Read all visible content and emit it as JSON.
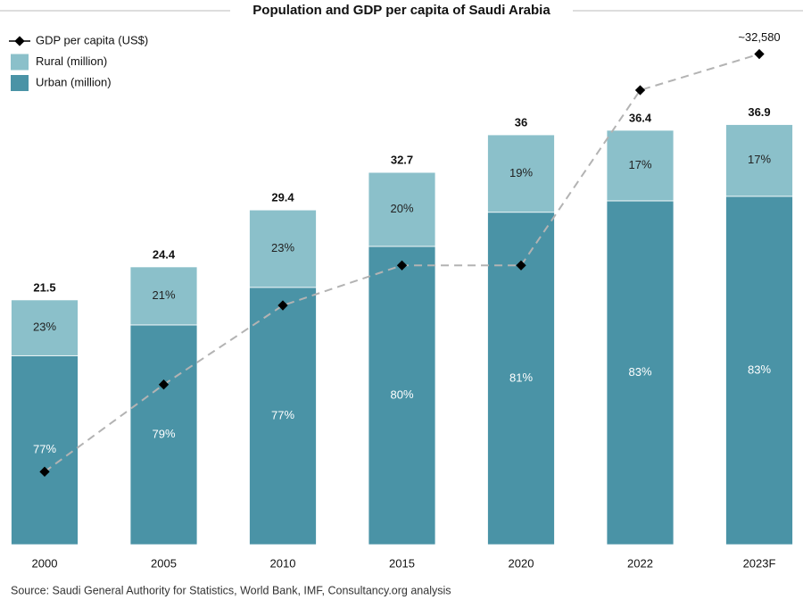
{
  "chart_data": {
    "type": "bar",
    "stacked": true,
    "title": "Population and GDP per capita of Saudi Arabia",
    "categories": [
      "2000",
      "2005",
      "2010",
      "2015",
      "2020",
      "2022",
      "2023F"
    ],
    "series": [
      {
        "name": "Urban (million)",
        "color": "#4a93a6",
        "values": [
          16.6,
          19.3,
          22.6,
          26.2,
          29.2,
          30.2,
          30.6
        ],
        "shares": [
          77,
          79,
          77,
          80,
          81,
          83,
          83
        ]
      },
      {
        "name": "Rural (million)",
        "color": "#8bc0ca",
        "values": [
          4.9,
          5.1,
          6.8,
          6.5,
          6.8,
          6.2,
          6.3
        ],
        "shares": [
          23,
          21,
          23,
          20,
          19,
          17,
          17
        ]
      },
      {
        "name": "GDP per capita (US$)",
        "type": "line",
        "axis": "y2",
        "color": "#000000",
        "line_color": "#b3b3b3",
        "values": [
          9100,
          14000,
          18450,
          20700,
          20700,
          30550,
          32580
        ],
        "value_labels": [
          null,
          null,
          null,
          null,
          null,
          null,
          "~32,580"
        ]
      }
    ],
    "totals": [
      21.5,
      24.4,
      29.4,
      32.7,
      36.0,
      36.4,
      36.9
    ],
    "ylim": [
      0,
      40
    ],
    "y2lim": [
      5000,
      30600
    ],
    "grid": false,
    "legend": "top-left",
    "source": "Source: Saudi General Authority for Statistics, World Bank, IMF, Consultancy.org analysis"
  }
}
